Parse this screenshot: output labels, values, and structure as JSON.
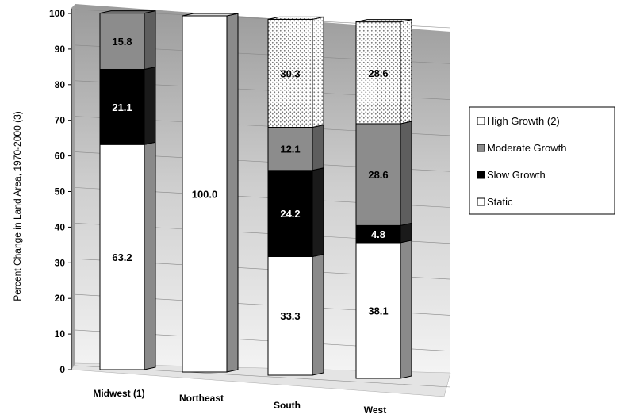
{
  "chart_data": {
    "type": "bar",
    "stacked": true,
    "three_d": true,
    "title": "",
    "ylabel": "Percent Change in Land Area, 1970-2000 (3)",
    "xlabel": "",
    "ylim": [
      0,
      100
    ],
    "yticks": [
      0,
      10,
      20,
      30,
      40,
      50,
      60,
      70,
      80,
      90,
      100
    ],
    "grid": true,
    "legend_position": "right",
    "categories": [
      "Midwest (1)",
      "Northeast",
      "South",
      "West"
    ],
    "series": [
      {
        "name": "Static",
        "values": [
          63.2,
          100.0,
          33.3,
          38.1
        ],
        "color": "#ffffff",
        "label_color": "#000000",
        "pattern": "none"
      },
      {
        "name": "Slow Growth",
        "values": [
          21.1,
          0,
          24.2,
          4.8
        ],
        "color": "#000000",
        "label_color": "#ffffff",
        "pattern": "none"
      },
      {
        "name": "Moderate Growth",
        "values": [
          15.8,
          0,
          12.1,
          28.6
        ],
        "color": "#8c8c8c",
        "label_color": "#000000",
        "pattern": "none"
      },
      {
        "name": "High Growth (2)",
        "values": [
          0,
          0,
          30.3,
          28.6
        ],
        "color": "#ffffff",
        "label_color": "#000000",
        "pattern": "dots"
      }
    ],
    "legend_order": [
      "High Growth (2)",
      "Moderate Growth",
      "Slow Growth",
      "Static"
    ]
  }
}
